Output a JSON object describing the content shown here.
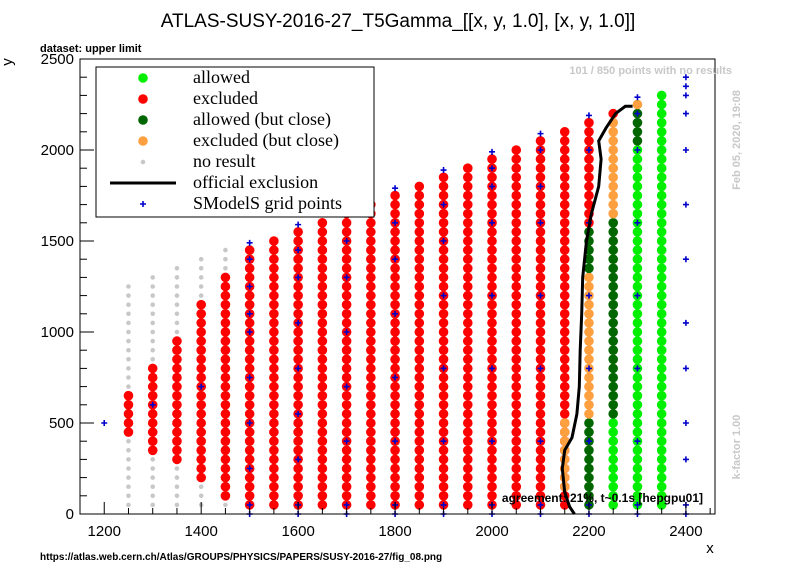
{
  "chart_data": {
    "type": "scatter",
    "title": "ATLAS-SUSY-2016-27_T5Gamma_[[x, y, 1.0], [x, y, 1.0]]",
    "xlabel": "x",
    "ylabel": "y",
    "xlim": [
      1150,
      2460
    ],
    "ylim": [
      0,
      2500
    ],
    "xticks": [
      1200,
      1400,
      1600,
      1800,
      2000,
      2200,
      2400
    ],
    "yticks": [
      0,
      500,
      1000,
      1500,
      2000,
      2500
    ],
    "grid": false,
    "legend_position": "top-left",
    "colors": {
      "allowed": "#00ee00",
      "excluded": "#ff0000",
      "allowed_close": "#006600",
      "excluded_close": "#ffa040",
      "no_result": "#c8c8c8",
      "official": "#000000",
      "grid_points": "#0000cc"
    },
    "legend": [
      {
        "key": "allowed",
        "label": "allowed",
        "marker": "dot"
      },
      {
        "key": "excluded",
        "label": "excluded",
        "marker": "dot"
      },
      {
        "key": "allowed_close",
        "label": "allowed (but close)",
        "marker": "dot"
      },
      {
        "key": "excluded_close",
        "label": "excluded (but close)",
        "marker": "dot"
      },
      {
        "key": "no_result",
        "label": "no result",
        "marker": "smalldot"
      },
      {
        "key": "official",
        "label": "official exclusion",
        "marker": "line"
      },
      {
        "key": "grid_points",
        "label": "SModelS grid points",
        "marker": "plus"
      }
    ],
    "columns": [
      {
        "x": 1250,
        "segments": [
          {
            "status": "no_result",
            "from": 50,
            "to": 1250
          },
          {
            "status": "excluded",
            "from": 450,
            "to": 650
          }
        ]
      },
      {
        "x": 1300,
        "segments": [
          {
            "status": "no_result",
            "from": 50,
            "to": 1300
          },
          {
            "status": "excluded",
            "from": 350,
            "to": 800
          }
        ]
      },
      {
        "x": 1350,
        "segments": [
          {
            "status": "no_result",
            "from": 50,
            "to": 1350
          },
          {
            "status": "excluded",
            "from": 300,
            "to": 950
          }
        ]
      },
      {
        "x": 1400,
        "segments": [
          {
            "status": "no_result",
            "from": 50,
            "to": 1400
          },
          {
            "status": "excluded",
            "from": 200,
            "to": 1150
          }
        ]
      },
      {
        "x": 1450,
        "segments": [
          {
            "status": "no_result",
            "from": 50,
            "to": 1450
          },
          {
            "status": "excluded",
            "from": 100,
            "to": 1300
          }
        ]
      },
      {
        "x": 1500,
        "segments": [
          {
            "status": "excluded",
            "from": 50,
            "to": 1450
          }
        ]
      },
      {
        "x": 1550,
        "segments": [
          {
            "status": "excluded",
            "from": 50,
            "to": 1500
          }
        ]
      },
      {
        "x": 1600,
        "segments": [
          {
            "status": "excluded",
            "from": 50,
            "to": 1550
          }
        ]
      },
      {
        "x": 1650,
        "segments": [
          {
            "status": "excluded",
            "from": 50,
            "to": 1600
          }
        ]
      },
      {
        "x": 1700,
        "segments": [
          {
            "status": "excluded",
            "from": 50,
            "to": 1650
          }
        ]
      },
      {
        "x": 1750,
        "segments": [
          {
            "status": "excluded",
            "from": 50,
            "to": 1700
          }
        ]
      },
      {
        "x": 1800,
        "segments": [
          {
            "status": "excluded",
            "from": 50,
            "to": 1750
          }
        ]
      },
      {
        "x": 1850,
        "segments": [
          {
            "status": "excluded",
            "from": 50,
            "to": 1800
          }
        ]
      },
      {
        "x": 1900,
        "segments": [
          {
            "status": "excluded",
            "from": 50,
            "to": 1850
          }
        ]
      },
      {
        "x": 1950,
        "segments": [
          {
            "status": "excluded",
            "from": 50,
            "to": 1900
          }
        ]
      },
      {
        "x": 2000,
        "segments": [
          {
            "status": "excluded",
            "from": 50,
            "to": 1950
          }
        ]
      },
      {
        "x": 2050,
        "segments": [
          {
            "status": "excluded",
            "from": 50,
            "to": 2000
          }
        ]
      },
      {
        "x": 2100,
        "segments": [
          {
            "status": "excluded",
            "from": 50,
            "to": 2050
          }
        ]
      },
      {
        "x": 2150,
        "segments": [
          {
            "status": "excluded",
            "from": 50,
            "to": 2100
          },
          {
            "status": "excluded_close",
            "from": 150,
            "to": 500
          }
        ]
      },
      {
        "x": 2200,
        "segments": [
          {
            "status": "allowed_close",
            "from": 50,
            "to": 500
          },
          {
            "status": "excluded_close",
            "from": 550,
            "to": 1300
          },
          {
            "status": "allowed_close",
            "from": 1350,
            "to": 1550
          },
          {
            "status": "excluded",
            "from": 1600,
            "to": 2150
          }
        ]
      },
      {
        "x": 2250,
        "segments": [
          {
            "status": "allowed",
            "from": 50,
            "to": 500
          },
          {
            "status": "allowed_close",
            "from": 550,
            "to": 1600
          },
          {
            "status": "excluded_close",
            "from": 1650,
            "to": 2150
          },
          {
            "status": "excluded",
            "from": 2200,
            "to": 2200
          }
        ]
      },
      {
        "x": 2300,
        "segments": [
          {
            "status": "allowed",
            "from": 50,
            "to": 2000
          },
          {
            "status": "allowed_close",
            "from": 2050,
            "to": 2200
          },
          {
            "status": "excluded_close",
            "from": 2250,
            "to": 2250
          }
        ]
      },
      {
        "x": 2350,
        "segments": [
          {
            "status": "allowed",
            "from": 50,
            "to": 2300
          }
        ]
      }
    ],
    "grid_points": [
      {
        "x": 1200,
        "y": 500
      },
      {
        "x": 1300,
        "y": 600
      },
      {
        "x": 1400,
        "y": 700
      },
      {
        "x": 1500,
        "y": 0
      },
      {
        "x": 1500,
        "y": 50
      },
      {
        "x": 1500,
        "y": 250
      },
      {
        "x": 1500,
        "y": 500
      },
      {
        "x": 1500,
        "y": 750
      },
      {
        "x": 1500,
        "y": 1000
      },
      {
        "x": 1500,
        "y": 1100
      },
      {
        "x": 1500,
        "y": 1250
      },
      {
        "x": 1500,
        "y": 1400
      },
      {
        "x": 1500,
        "y": 1490
      },
      {
        "x": 1600,
        "y": 0
      },
      {
        "x": 1600,
        "y": 50
      },
      {
        "x": 1600,
        "y": 300
      },
      {
        "x": 1600,
        "y": 550
      },
      {
        "x": 1600,
        "y": 800
      },
      {
        "x": 1600,
        "y": 1050
      },
      {
        "x": 1600,
        "y": 1300
      },
      {
        "x": 1600,
        "y": 1450
      },
      {
        "x": 1600,
        "y": 1590
      },
      {
        "x": 1700,
        "y": 0
      },
      {
        "x": 1700,
        "y": 50
      },
      {
        "x": 1700,
        "y": 400
      },
      {
        "x": 1700,
        "y": 700
      },
      {
        "x": 1700,
        "y": 1000
      },
      {
        "x": 1700,
        "y": 1300
      },
      {
        "x": 1700,
        "y": 1500
      },
      {
        "x": 1700,
        "y": 1690
      },
      {
        "x": 1800,
        "y": 0
      },
      {
        "x": 1800,
        "y": 50
      },
      {
        "x": 1800,
        "y": 400
      },
      {
        "x": 1800,
        "y": 750
      },
      {
        "x": 1800,
        "y": 1100
      },
      {
        "x": 1800,
        "y": 1400
      },
      {
        "x": 1800,
        "y": 1600
      },
      {
        "x": 1800,
        "y": 1790
      },
      {
        "x": 1900,
        "y": 0
      },
      {
        "x": 1900,
        "y": 50
      },
      {
        "x": 1900,
        "y": 400
      },
      {
        "x": 1900,
        "y": 800
      },
      {
        "x": 1900,
        "y": 1200
      },
      {
        "x": 1900,
        "y": 1500
      },
      {
        "x": 1900,
        "y": 1700
      },
      {
        "x": 1900,
        "y": 1890
      },
      {
        "x": 2000,
        "y": 0
      },
      {
        "x": 2000,
        "y": 50
      },
      {
        "x": 2000,
        "y": 400
      },
      {
        "x": 2000,
        "y": 800
      },
      {
        "x": 2000,
        "y": 1200
      },
      {
        "x": 2000,
        "y": 1600
      },
      {
        "x": 2000,
        "y": 1800
      },
      {
        "x": 2000,
        "y": 1900
      },
      {
        "x": 2000,
        "y": 1990
      },
      {
        "x": 2100,
        "y": 0
      },
      {
        "x": 2100,
        "y": 50
      },
      {
        "x": 2100,
        "y": 400
      },
      {
        "x": 2100,
        "y": 800
      },
      {
        "x": 2100,
        "y": 1200
      },
      {
        "x": 2100,
        "y": 1600
      },
      {
        "x": 2100,
        "y": 1800
      },
      {
        "x": 2100,
        "y": 2000
      },
      {
        "x": 2100,
        "y": 2090
      },
      {
        "x": 2200,
        "y": 0
      },
      {
        "x": 2200,
        "y": 50
      },
      {
        "x": 2200,
        "y": 400
      },
      {
        "x": 2200,
        "y": 800
      },
      {
        "x": 2200,
        "y": 1200
      },
      {
        "x": 2200,
        "y": 1600
      },
      {
        "x": 2200,
        "y": 2000
      },
      {
        "x": 2200,
        "y": 2190
      },
      {
        "x": 2300,
        "y": 0
      },
      {
        "x": 2300,
        "y": 50
      },
      {
        "x": 2300,
        "y": 400
      },
      {
        "x": 2300,
        "y": 800
      },
      {
        "x": 2300,
        "y": 1200
      },
      {
        "x": 2300,
        "y": 1600
      },
      {
        "x": 2300,
        "y": 2000
      },
      {
        "x": 2300,
        "y": 2200
      },
      {
        "x": 2300,
        "y": 2290
      },
      {
        "x": 2400,
        "y": 0
      },
      {
        "x": 2400,
        "y": 50
      },
      {
        "x": 2400,
        "y": 300
      },
      {
        "x": 2400,
        "y": 500
      },
      {
        "x": 2400,
        "y": 800
      },
      {
        "x": 2400,
        "y": 1050
      },
      {
        "x": 2400,
        "y": 1400
      },
      {
        "x": 2400,
        "y": 1700
      },
      {
        "x": 2400,
        "y": 2000
      },
      {
        "x": 2400,
        "y": 2200
      },
      {
        "x": 2400,
        "y": 2300
      },
      {
        "x": 2400,
        "y": 2350
      },
      {
        "x": 2400,
        "y": 2400
      }
    ],
    "official_exclusion": [
      [
        2170,
        0
      ],
      [
        2160,
        40
      ],
      [
        2150,
        120
      ],
      [
        2145,
        250
      ],
      [
        2150,
        350
      ],
      [
        2165,
        420
      ],
      [
        2175,
        550
      ],
      [
        2180,
        700
      ],
      [
        2182,
        900
      ],
      [
        2185,
        1100
      ],
      [
        2187,
        1300
      ],
      [
        2195,
        1500
      ],
      [
        2205,
        1650
      ],
      [
        2220,
        1800
      ],
      [
        2225,
        1950
      ],
      [
        2220,
        2050
      ],
      [
        2235,
        2120
      ],
      [
        2255,
        2200
      ],
      [
        2275,
        2240
      ],
      [
        2290,
        2240
      ]
    ]
  },
  "header_note": "dataset: upper limit",
  "points_note": "101 / 850 points with no results",
  "agreement_note": "agreement: 21%, t~0.1s [hepgpu01]",
  "date_note": "Feb 05, 2020, 19:08",
  "kfactor_note": "k-factor 1.00",
  "source_url": "https://atlas.web.cern.ch/Atlas/GROUPS/PHYSICS/PAPERS/SUSY-2016-27/fig_08.png"
}
